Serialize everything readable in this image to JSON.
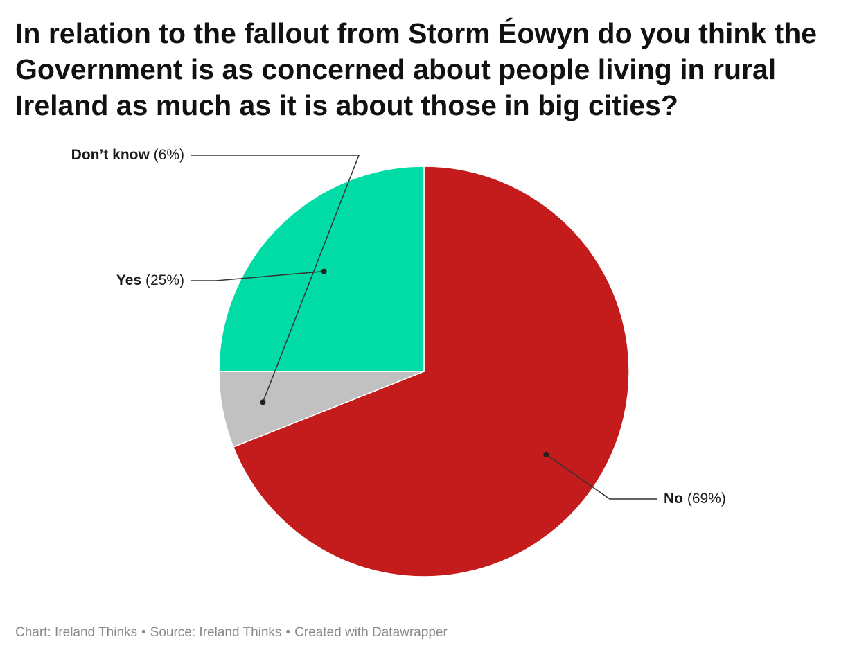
{
  "title": "In relation to the fallout from Storm Éowyn do you think the Government is as concerned about people living in rural Ireland as much as it is about those in big cities?",
  "chart_data": {
    "type": "pie",
    "slices": [
      {
        "label": "No",
        "value": 69,
        "value_text": "(69%)",
        "color": "#c41c1c"
      },
      {
        "label": "Don’t know",
        "value": 6,
        "value_text": "(6%)",
        "color": "#c1c1c1"
      },
      {
        "label": "Yes",
        "value": 25,
        "value_text": "(25%)",
        "color": "#01dba6"
      }
    ],
    "unit": "%",
    "start_angle": "12 o'clock, clockwise"
  },
  "footer": {
    "chart_credit": "Chart: Ireland Thinks",
    "separator": "•",
    "source": "Source: Ireland Thinks",
    "created_with": "Created with Datawrapper"
  }
}
